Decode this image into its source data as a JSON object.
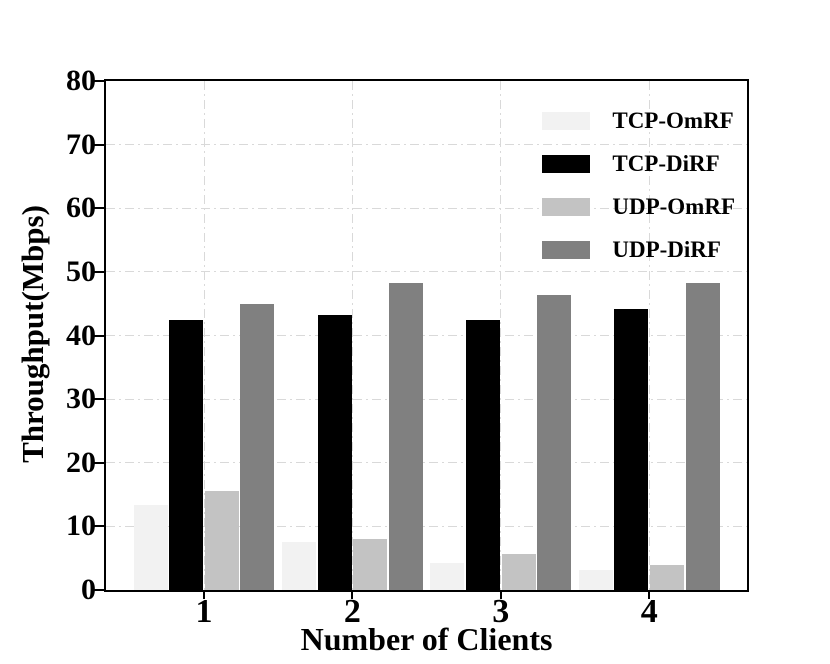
{
  "chart_data": {
    "type": "bar",
    "title": "",
    "xlabel": "Number of Clients",
    "ylabel": "Throughput(Mbps)",
    "categories": [
      "1",
      "2",
      "3",
      "4"
    ],
    "series": [
      {
        "name": "TCP-OmRF",
        "color": "#f2f2f2",
        "values": [
          13.3,
          7.5,
          4.2,
          3.1
        ]
      },
      {
        "name": "TCP-DiRF",
        "color": "#000000",
        "values": [
          42.4,
          43.2,
          42.5,
          44.1
        ]
      },
      {
        "name": "UDP-OmRF",
        "color": "#c3c3c3",
        "values": [
          15.6,
          8.0,
          5.7,
          4.0
        ]
      },
      {
        "name": "UDP-DiRF",
        "color": "#808080",
        "values": [
          45.0,
          48.2,
          46.3,
          48.2
        ]
      }
    ],
    "ylim": [
      0,
      80
    ],
    "yticks": [
      0,
      10,
      20,
      30,
      40,
      50,
      60,
      70,
      80
    ],
    "grid": true,
    "gridline_color": "#d9d9d9",
    "legend_position": "upper right",
    "legend": [
      "TCP-OmRF",
      "TCP-DiRF",
      "UDP-OmRF",
      "UDP-DiRF"
    ]
  },
  "colors": {
    "background": "#ffffff",
    "axis": "#000000",
    "text": "#000000"
  }
}
